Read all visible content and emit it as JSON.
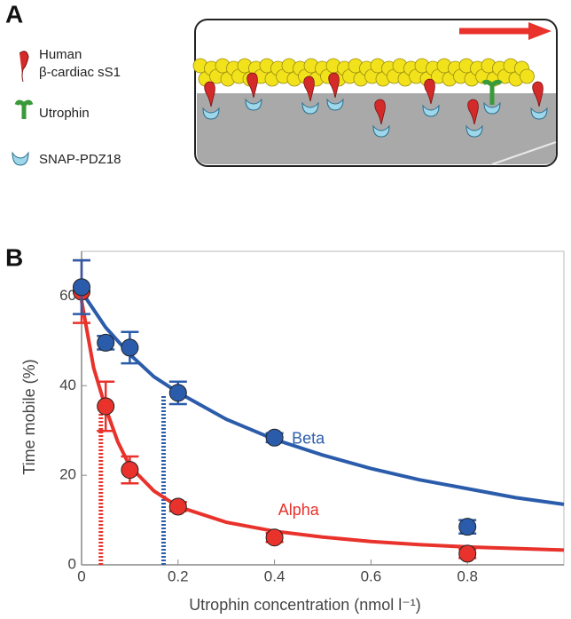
{
  "panels": {
    "a": "A",
    "b": "B"
  },
  "diagram": {
    "labels": [
      "Human",
      "β-cardiac sS1",
      "Utrophin",
      "SNAP-PDZ18"
    ]
  },
  "chart_data": {
    "type": "scatter",
    "xlabel": "Utrophin concentration (nmol l⁻¹)",
    "ylabel": "Time mobile (%)",
    "xlim": [
      0,
      1.0
    ],
    "ylim": [
      0,
      70
    ],
    "xticks": [
      0,
      0.2,
      0.4,
      0.6,
      0.8
    ],
    "yticks": [
      0,
      20,
      40,
      60
    ],
    "grid": false,
    "series": [
      {
        "name": "Beta",
        "color": "#2b5cab",
        "x": [
          0,
          0.05,
          0.1,
          0.2,
          0.4,
          0.8
        ],
        "values": [
          62,
          49.6,
          48.5,
          38.4,
          28.4,
          8.5
        ],
        "errors": [
          6,
          1.5,
          3.5,
          2.5,
          1,
          1.5
        ]
      },
      {
        "name": "Alpha",
        "color": "#e8322b",
        "x": [
          0,
          0.05,
          0.1,
          0.2,
          0.4,
          0.8
        ],
        "values": [
          61,
          35.4,
          21.2,
          13,
          6.1,
          2.5
        ],
        "errors": [
          7,
          5.5,
          3,
          1,
          1,
          1
        ]
      }
    ],
    "fits": [
      {
        "color": "#2b5cab",
        "x": [
          0,
          0.05,
          0.1,
          0.15,
          0.2,
          0.3,
          0.4,
          0.5,
          0.6,
          0.7,
          0.8,
          0.9,
          1.0
        ],
        "values": [
          61,
          53,
          47,
          42,
          38.5,
          32.5,
          28,
          24.5,
          21.5,
          19,
          17,
          15,
          13.5
        ]
      },
      {
        "color": "#e8322b",
        "x": [
          0,
          0.025,
          0.05,
          0.075,
          0.1,
          0.15,
          0.2,
          0.3,
          0.4,
          0.5,
          0.6,
          0.7,
          0.8,
          1.0
        ],
        "values": [
          59,
          44,
          35,
          27.5,
          22,
          16.5,
          13,
          9.5,
          7.5,
          6.2,
          5.2,
          4.5,
          4,
          3.3
        ]
      }
    ],
    "markers": [
      {
        "x": 0.04,
        "top": 34,
        "color": "#e8322b"
      },
      {
        "x": 0.17,
        "top": 38,
        "color": "#2b5cab"
      }
    ]
  }
}
